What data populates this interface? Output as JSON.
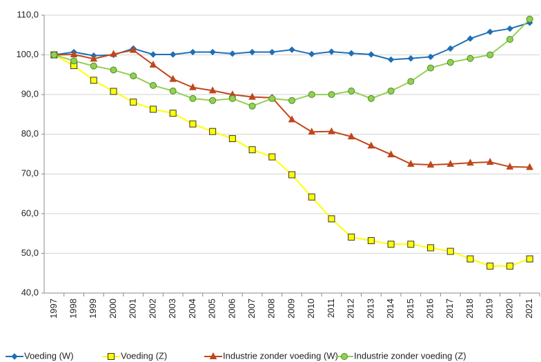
{
  "chart_data": {
    "type": "line",
    "categories": [
      "1997",
      "1998",
      "1999",
      "2000",
      "2001",
      "2002",
      "2003",
      "2004",
      "2005",
      "2006",
      "2007",
      "2008",
      "2009",
      "2010",
      "2011",
      "2012",
      "2013",
      "2014",
      "2015",
      "2016",
      "2017",
      "2018",
      "2019",
      "2020",
      "2021"
    ],
    "ylim": [
      40,
      110
    ],
    "yticks": [
      {
        "value": 40,
        "label": "40,0"
      },
      {
        "value": 50,
        "label": "50,0"
      },
      {
        "value": 60,
        "label": "60,0"
      },
      {
        "value": 70,
        "label": "70,0"
      },
      {
        "value": 80,
        "label": "80,0"
      },
      {
        "value": 90,
        "label": "90,0"
      },
      {
        "value": 100,
        "label": "100,0"
      },
      {
        "value": 110,
        "label": "110,0"
      }
    ],
    "grid": true,
    "legend": "bottom",
    "series": [
      {
        "name": "Voeding (W)",
        "color": "#1f6fb4",
        "marker": "diamond",
        "marker_fill": "#1f6fb4",
        "values": [
          100,
          100.7,
          99.8,
          100,
          101.6,
          100.1,
          100.1,
          100.7,
          100.7,
          100.3,
          100.7,
          100.7,
          101.3,
          100.2,
          100.8,
          100.4,
          100.1,
          98.8,
          99.1,
          99.5,
          101.6,
          104.1,
          105.8,
          106.6,
          108.1
        ]
      },
      {
        "name": "Voeding (Z)",
        "color": "#ffff00",
        "marker": "square",
        "marker_fill": "#ffff00",
        "values": [
          100,
          97.3,
          93.6,
          90.8,
          88.1,
          86.3,
          85.3,
          82.6,
          80.7,
          78.9,
          76.1,
          74.3,
          69.8,
          64.2,
          58.7,
          54.1,
          53.2,
          52.3,
          52.3,
          51.4,
          50.5,
          48.6,
          46.8,
          46.8,
          48.6
        ]
      },
      {
        "name": "Industrie zonder voeding (W)",
        "color": "#c0461c",
        "marker": "triangle",
        "marker_fill": "#c0461c",
        "values": [
          100,
          100.1,
          99,
          100.2,
          101.2,
          97.5,
          93.9,
          91.8,
          91,
          90,
          89.4,
          89.2,
          83.7,
          80.6,
          80.7,
          79.4,
          77.1,
          74.9,
          72.5,
          72.3,
          72.5,
          72.8,
          73,
          71.8,
          71.7
        ]
      },
      {
        "name": "Industrie zonder voeding (Z)",
        "color": "#92d050",
        "marker": "circle",
        "marker_fill": "#92d050",
        "values": [
          100,
          98.5,
          97.2,
          96.2,
          94.7,
          92.3,
          90.9,
          89,
          88.5,
          89,
          87.1,
          89,
          88.5,
          90,
          90,
          90.9,
          89,
          90.9,
          93.3,
          96.7,
          98.1,
          99.1,
          100,
          103.9,
          109
        ]
      }
    ]
  }
}
